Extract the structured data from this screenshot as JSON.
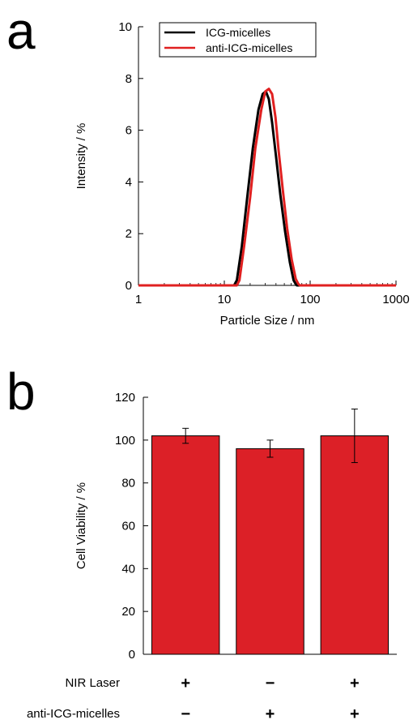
{
  "panels": {
    "a": "a",
    "b": "b"
  },
  "chart_data": [
    {
      "type": "line",
      "panel": "a",
      "xlabel": "Particle Size / nm",
      "ylabel": "Intensity / %",
      "xscale": "log",
      "xlim": [
        1,
        1000
      ],
      "ylim": [
        0,
        10
      ],
      "x_ticks": [
        "1",
        "10",
        "100",
        "1000"
      ],
      "y_ticks": [
        "0",
        "2",
        "4",
        "6",
        "8",
        "10"
      ],
      "legend_position": "top-right",
      "grid": false,
      "series": [
        {
          "name": "ICG-micelles",
          "color": "#000000",
          "x": [
            1,
            13,
            14,
            16,
            18.5,
            21.5,
            25,
            28,
            30.5,
            33,
            36,
            40,
            45,
            51,
            58,
            64,
            68,
            70,
            100,
            1000
          ],
          "y": [
            0,
            0,
            0.2,
            1.5,
            3.4,
            5.3,
            6.8,
            7.4,
            7.5,
            7.2,
            6.3,
            5.0,
            3.5,
            2.1,
            0.9,
            0.2,
            0.05,
            0,
            0,
            0
          ]
        },
        {
          "name": "anti-ICG-micelles",
          "color": "#e02020",
          "x": [
            1,
            14,
            15,
            17,
            20,
            23,
            27,
            30,
            33,
            36,
            39.5,
            43,
            48,
            54,
            61,
            68,
            73,
            76,
            100,
            1000
          ],
          "y": [
            0,
            0,
            0.2,
            1.5,
            3.4,
            5.3,
            6.8,
            7.5,
            7.6,
            7.4,
            6.5,
            5.2,
            3.7,
            2.2,
            1.0,
            0.25,
            0.05,
            0,
            0,
            0
          ]
        }
      ]
    },
    {
      "type": "bar",
      "panel": "b",
      "ylabel": "Cell Viability / %",
      "ylim": [
        0,
        120
      ],
      "y_ticks": [
        "0",
        "20",
        "40",
        "60",
        "80",
        "100",
        "120"
      ],
      "grid": false,
      "bar_color": "#dc2027",
      "categories": [
        "1",
        "2",
        "3"
      ],
      "values": [
        102,
        96,
        102
      ],
      "errors": [
        3.5,
        4,
        12.5
      ],
      "conditions": [
        {
          "label": "NIR Laser",
          "signs": [
            "+",
            "−",
            "+"
          ]
        },
        {
          "label": "anti-ICG-micelles",
          "signs": [
            "−",
            "+",
            "+"
          ]
        }
      ]
    }
  ]
}
